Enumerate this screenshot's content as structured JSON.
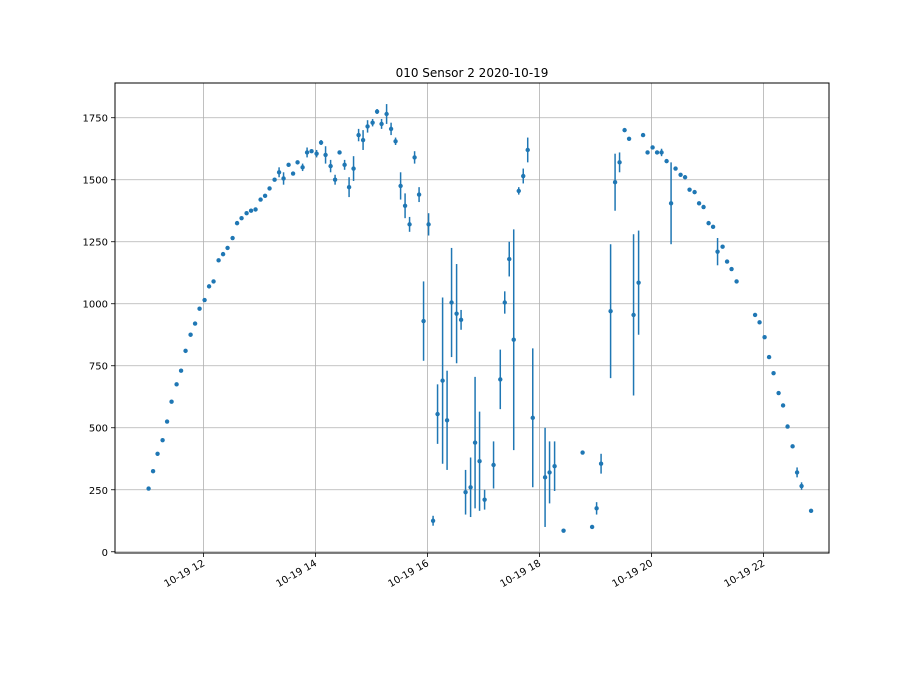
{
  "chart_data": {
    "type": "scatter",
    "title": "010 Sensor 2 2020-10-19",
    "xlabel": "",
    "ylabel": "",
    "x_unit": "hours (time of day, 2020-10-19)",
    "xlim": [
      10.42,
      23.17
    ],
    "ylim": [
      -5,
      1890
    ],
    "grid": true,
    "colors": {
      "series": "#1f77b4",
      "grid": "#b0b0b0"
    },
    "x_ticks": [
      {
        "value": 12,
        "label": "10-19 12"
      },
      {
        "value": 14,
        "label": "10-19 14"
      },
      {
        "value": 16,
        "label": "10-19 16"
      },
      {
        "value": 18,
        "label": "10-19 18"
      },
      {
        "value": 20,
        "label": "10-19 20"
      },
      {
        "value": 22,
        "label": "10-19 22"
      }
    ],
    "y_ticks": [
      {
        "value": 0,
        "label": "0"
      },
      {
        "value": 250,
        "label": "250"
      },
      {
        "value": 500,
        "label": "500"
      },
      {
        "value": 750,
        "label": "750"
      },
      {
        "value": 1000,
        "label": "1000"
      },
      {
        "value": 1250,
        "label": "1250"
      },
      {
        "value": 1500,
        "label": "1500"
      },
      {
        "value": 1750,
        "label": "1750"
      }
    ],
    "points": [
      [
        11.02,
        255,
        0
      ],
      [
        11.1,
        325,
        0
      ],
      [
        11.18,
        395,
        0
      ],
      [
        11.27,
        450,
        0
      ],
      [
        11.35,
        525,
        0
      ],
      [
        11.43,
        605,
        0
      ],
      [
        11.52,
        675,
        0
      ],
      [
        11.6,
        730,
        0
      ],
      [
        11.68,
        810,
        0
      ],
      [
        11.77,
        875,
        0
      ],
      [
        11.85,
        920,
        0
      ],
      [
        11.93,
        980,
        0
      ],
      [
        12.02,
        1015,
        0
      ],
      [
        12.1,
        1070,
        0
      ],
      [
        12.18,
        1090,
        0
      ],
      [
        12.27,
        1175,
        0
      ],
      [
        12.35,
        1200,
        0
      ],
      [
        12.43,
        1225,
        0
      ],
      [
        12.52,
        1265,
        0
      ],
      [
        12.6,
        1325,
        0
      ],
      [
        12.68,
        1345,
        0
      ],
      [
        12.77,
        1365,
        0
      ],
      [
        12.85,
        1375,
        0
      ],
      [
        12.93,
        1380,
        0
      ],
      [
        13.02,
        1420,
        0
      ],
      [
        13.1,
        1435,
        0
      ],
      [
        13.18,
        1465,
        0
      ],
      [
        13.27,
        1500,
        0
      ],
      [
        13.35,
        1530,
        20
      ],
      [
        13.43,
        1505,
        25
      ],
      [
        13.52,
        1560,
        0
      ],
      [
        13.6,
        1525,
        0
      ],
      [
        13.68,
        1570,
        0
      ],
      [
        13.77,
        1550,
        15
      ],
      [
        13.85,
        1610,
        20
      ],
      [
        13.93,
        1615,
        0
      ],
      [
        14.02,
        1605,
        15
      ],
      [
        14.1,
        1650,
        10
      ],
      [
        14.18,
        1600,
        35
      ],
      [
        14.27,
        1555,
        25
      ],
      [
        14.35,
        1500,
        20
      ],
      [
        14.43,
        1610,
        0
      ],
      [
        14.52,
        1560,
        20
      ],
      [
        14.6,
        1470,
        40
      ],
      [
        14.68,
        1545,
        50
      ],
      [
        14.77,
        1680,
        25
      ],
      [
        14.85,
        1660,
        40
      ],
      [
        14.93,
        1715,
        25
      ],
      [
        15.02,
        1730,
        15
      ],
      [
        15.1,
        1775,
        10
      ],
      [
        15.18,
        1725,
        20
      ],
      [
        15.27,
        1765,
        40
      ],
      [
        15.35,
        1705,
        25
      ],
      [
        15.43,
        1655,
        15
      ],
      [
        15.52,
        1475,
        55
      ],
      [
        15.6,
        1395,
        50
      ],
      [
        15.68,
        1320,
        30
      ],
      [
        15.77,
        1590,
        25
      ],
      [
        15.85,
        1440,
        30
      ],
      [
        15.93,
        930,
        160
      ],
      [
        16.02,
        1320,
        45
      ],
      [
        16.1,
        125,
        20
      ],
      [
        16.18,
        555,
        120
      ],
      [
        16.27,
        690,
        335
      ],
      [
        16.35,
        530,
        200
      ],
      [
        16.43,
        1005,
        220
      ],
      [
        16.52,
        960,
        200
      ],
      [
        16.6,
        935,
        40
      ],
      [
        16.68,
        240,
        90
      ],
      [
        16.77,
        260,
        120
      ],
      [
        16.85,
        440,
        265
      ],
      [
        16.93,
        365,
        200
      ],
      [
        17.02,
        210,
        40
      ],
      [
        17.18,
        350,
        95
      ],
      [
        17.3,
        695,
        120
      ],
      [
        17.38,
        1005,
        45
      ],
      [
        17.46,
        1180,
        70
      ],
      [
        17.54,
        855,
        445
      ],
      [
        17.63,
        1455,
        15
      ],
      [
        17.71,
        1515,
        30
      ],
      [
        17.79,
        1620,
        50
      ],
      [
        17.88,
        540,
        280
      ],
      [
        18.1,
        300,
        200
      ],
      [
        18.18,
        320,
        125
      ],
      [
        18.27,
        345,
        100
      ],
      [
        18.43,
        85,
        0
      ],
      [
        18.77,
        400,
        0
      ],
      [
        18.94,
        100,
        0
      ],
      [
        19.02,
        175,
        25
      ],
      [
        19.1,
        355,
        40
      ],
      [
        19.27,
        970,
        270
      ],
      [
        19.35,
        1490,
        115
      ],
      [
        19.43,
        1570,
        40
      ],
      [
        19.52,
        1700,
        0
      ],
      [
        19.6,
        1665,
        0
      ],
      [
        19.68,
        955,
        325
      ],
      [
        19.77,
        1085,
        210
      ],
      [
        19.85,
        1680,
        0
      ],
      [
        19.93,
        1610,
        0
      ],
      [
        20.02,
        1630,
        0
      ],
      [
        20.1,
        1610,
        0
      ],
      [
        20.18,
        1610,
        15
      ],
      [
        20.27,
        1575,
        0
      ],
      [
        20.35,
        1405,
        165
      ],
      [
        20.43,
        1545,
        0
      ],
      [
        20.52,
        1520,
        0
      ],
      [
        20.6,
        1510,
        0
      ],
      [
        20.68,
        1460,
        0
      ],
      [
        20.77,
        1450,
        0
      ],
      [
        20.85,
        1405,
        0
      ],
      [
        20.93,
        1390,
        0
      ],
      [
        21.02,
        1325,
        0
      ],
      [
        21.1,
        1310,
        0
      ],
      [
        21.18,
        1210,
        55
      ],
      [
        21.27,
        1230,
        0
      ],
      [
        21.35,
        1170,
        0
      ],
      [
        21.43,
        1140,
        0
      ],
      [
        21.52,
        1090,
        0
      ],
      [
        21.85,
        955,
        0
      ],
      [
        21.93,
        925,
        0
      ],
      [
        22.02,
        865,
        0
      ],
      [
        22.1,
        785,
        0
      ],
      [
        22.18,
        720,
        0
      ],
      [
        22.27,
        640,
        0
      ],
      [
        22.35,
        590,
        0
      ],
      [
        22.43,
        505,
        0
      ],
      [
        22.52,
        425,
        0
      ],
      [
        22.6,
        320,
        20
      ],
      [
        22.68,
        265,
        15
      ],
      [
        22.85,
        165,
        0
      ]
    ]
  }
}
